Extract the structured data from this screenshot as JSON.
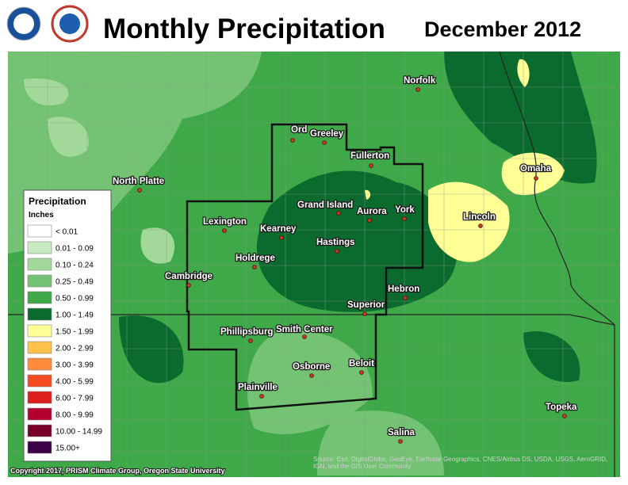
{
  "header": {
    "title": "Monthly Precipitation",
    "date": "December 2012"
  },
  "legend": {
    "title": "Precipitation",
    "unit": "Inches",
    "items": [
      {
        "label": "< 0.01",
        "color": "#ffffff"
      },
      {
        "label": "0.01 - 0.09",
        "color": "#c8eac0"
      },
      {
        "label": "0.10 - 0.24",
        "color": "#a2d99a"
      },
      {
        "label": "0.25 - 0.49",
        "color": "#74c374"
      },
      {
        "label": "0.50 - 0.99",
        "color": "#3fa94a"
      },
      {
        "label": "1.00 - 1.49",
        "color": "#0b6b2e"
      },
      {
        "label": "1.50 - 1.99",
        "color": "#ffff96"
      },
      {
        "label": "2.00 - 2.99",
        "color": "#ffc04c"
      },
      {
        "label": "3.00 - 3.99",
        "color": "#ff8c3c"
      },
      {
        "label": "4.00 - 5.99",
        "color": "#f44b22"
      },
      {
        "label": "6.00 - 7.99",
        "color": "#dc1e1e"
      },
      {
        "label": "8.00 - 9.99",
        "color": "#b4002d"
      },
      {
        "label": "10.00 - 14.99",
        "color": "#780028"
      },
      {
        "label": "15.00+",
        "color": "#3c0046"
      }
    ]
  },
  "cities": [
    "Norfolk",
    "Ord",
    "Greeley",
    "Fullerton",
    "North Platte",
    "Omaha",
    "Grand Island",
    "Aurora",
    "York",
    "Lincoln",
    "Lexington",
    "Kearney",
    "Hastings",
    "Holdrege",
    "Cambridge",
    "Hebron",
    "Superior",
    "Phillipsburg",
    "Smith Center",
    "Osborne",
    "Beloit",
    "Plainville",
    "Topeka",
    "Salina"
  ],
  "credits": {
    "copyright": "Copyright 2017, PRISM Climate Group, Oregon State University",
    "source": "Source: Esri, DigitalGlobe, GeoEye, Earthstar Geographics, CNES/Airbus DS, USDA, USGS, AeroGRID, IGN, and the GIS User Community"
  }
}
